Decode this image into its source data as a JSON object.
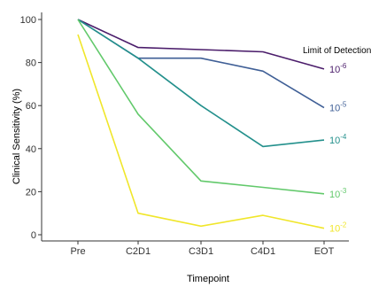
{
  "chart_data": {
    "type": "line",
    "title": "",
    "xlabel": "Timepoint",
    "ylabel": "Clinical Sensitivity (%)",
    "categories": [
      "Pre",
      "C2D1",
      "C3D1",
      "C4D1",
      "EOT"
    ],
    "ylim": [
      0,
      100
    ],
    "yticks": [
      "0",
      "20",
      "40",
      "60",
      "80",
      "100"
    ],
    "grid": false,
    "annotation": "Limit of Detection",
    "series": [
      {
        "name": "10",
        "exponent": "-6",
        "color": "#4b1d6b",
        "values": [
          100,
          87,
          86,
          85,
          77
        ]
      },
      {
        "name": "10",
        "exponent": "-5",
        "color": "#3f5f96",
        "values": [
          100,
          82,
          82,
          76,
          59
        ]
      },
      {
        "name": "10",
        "exponent": "-4",
        "color": "#23908c",
        "values": [
          100,
          82,
          60,
          41,
          44
        ]
      },
      {
        "name": "10",
        "exponent": "-3",
        "color": "#62c96b",
        "values": [
          100,
          56,
          25,
          22,
          19
        ]
      },
      {
        "name": "10",
        "exponent": "-2",
        "color": "#f0e62a",
        "values": [
          93,
          10,
          4,
          9,
          3
        ]
      }
    ]
  }
}
